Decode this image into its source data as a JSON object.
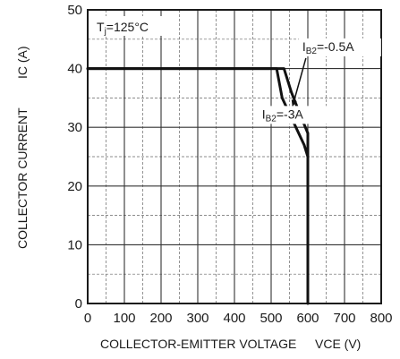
{
  "chart_data": {
    "type": "line",
    "title": "",
    "xlabel": "COLLECTOR-EMITTER VOLTAGE",
    "xlabel_unit": "VCE (V)",
    "ylabel": "COLLECTOR CURRENT",
    "ylabel_unit": "IC (A)",
    "xlim": [
      0,
      800
    ],
    "ylim": [
      0,
      50
    ],
    "x_major_ticks": [
      0,
      100,
      200,
      300,
      400,
      500,
      600,
      700,
      800
    ],
    "y_major_ticks": [
      0,
      10,
      20,
      30,
      40,
      50
    ],
    "x_minor_step": 50,
    "y_minor_step": 5,
    "grid": true,
    "condition_label": "Tj=125°C",
    "series": [
      {
        "name": "IB2=-0.5A",
        "x": [
          0,
          535,
          555,
          580,
          600,
          600
        ],
        "y": [
          40,
          40,
          36,
          32,
          29,
          0
        ]
      },
      {
        "name": "IB2=-3A",
        "x": [
          0,
          515,
          530,
          560,
          590,
          600
        ],
        "y": [
          40,
          40,
          35,
          31,
          27,
          25
        ]
      }
    ],
    "annotations": [
      {
        "text": "IB2=-0.5A",
        "x": 585,
        "y": 43,
        "arrow_to": [
          558,
          33.5
        ]
      },
      {
        "text": "IB2=-3A",
        "x": 475,
        "y": 31.5
      }
    ]
  }
}
